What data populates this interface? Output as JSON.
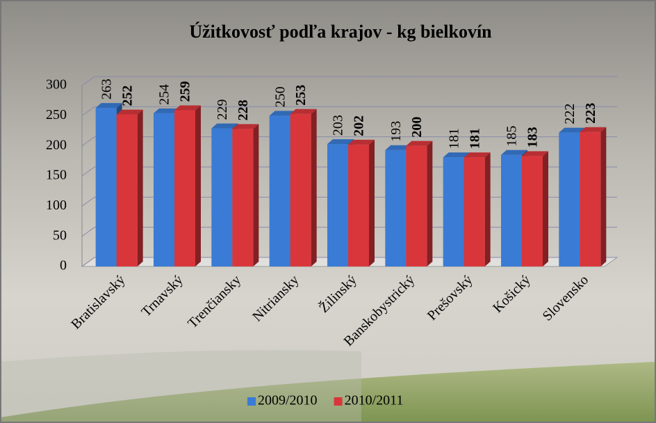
{
  "chart_data": {
    "type": "bar",
    "title": "Úžitkovosť podľa krajov - kg bielkovín",
    "categories": [
      "Bratislavský",
      "Trnavský",
      "Trenčiansky",
      "Nitriansky",
      "Žilinský",
      "Banskobystrický",
      "Prešovský",
      "Košický",
      "Slovensko"
    ],
    "series": [
      {
        "name": "2009/2010",
        "color": "#3a7bd5",
        "values": [
          263,
          254,
          229,
          250,
          203,
          193,
          181,
          185,
          222
        ]
      },
      {
        "name": "2010/2011",
        "color": "#d9363b",
        "values": [
          252,
          259,
          228,
          253,
          202,
          200,
          181,
          183,
          223
        ]
      }
    ],
    "ylim": [
      0,
      300
    ],
    "yticks": [
      0,
      50,
      100,
      150,
      200,
      250,
      300
    ],
    "grid": true,
    "legend": "bottom"
  }
}
